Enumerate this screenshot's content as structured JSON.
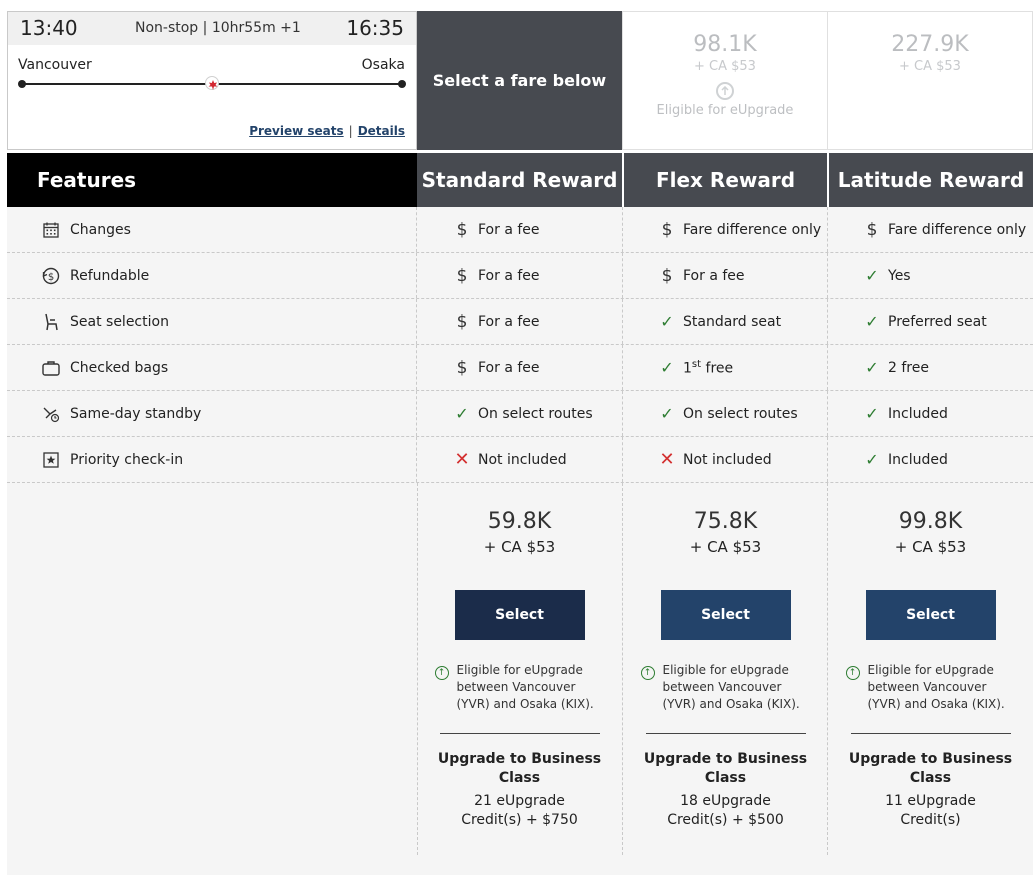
{
  "flight": {
    "depart_time": "13:40",
    "arrive_time": "16:35",
    "route_info": "Non-stop | 10hr55m +1",
    "origin": "Vancouver",
    "destination": "Osaka",
    "preview_seats_link": "Preview seats",
    "details_link": "Details",
    "separator": "|"
  },
  "prompt": "Select a fare below",
  "top_cards": [
    {
      "points": "98.1K",
      "tax": "+ CA $53",
      "eligible": "Eligible for eUpgrade"
    },
    {
      "points": "227.9K",
      "tax": "+ CA $53"
    }
  ],
  "features_header": "Features",
  "fare_columns": [
    "Standard Reward",
    "Flex Reward",
    "Latitude Reward"
  ],
  "rows": [
    {
      "feature": "Changes",
      "icon": "calendar-icon",
      "values": [
        {
          "mark": "dollar",
          "text": "For a fee"
        },
        {
          "mark": "dollar",
          "text": "Fare difference only"
        },
        {
          "mark": "dollar",
          "text": "Fare difference only"
        }
      ]
    },
    {
      "feature": "Refundable",
      "icon": "refund-icon",
      "values": [
        {
          "mark": "dollar",
          "text": "For a fee"
        },
        {
          "mark": "dollar",
          "text": "For a fee"
        },
        {
          "mark": "check",
          "text": "Yes"
        }
      ]
    },
    {
      "feature": "Seat selection",
      "icon": "seat-icon",
      "values": [
        {
          "mark": "dollar",
          "text": "For a fee"
        },
        {
          "mark": "check",
          "text": "Standard seat"
        },
        {
          "mark": "check",
          "text": "Preferred seat"
        }
      ]
    },
    {
      "feature": "Checked bags",
      "icon": "bag-icon",
      "values": [
        {
          "mark": "dollar",
          "text": "For a fee"
        },
        {
          "mark": "check",
          "text": "1",
          "sup": "st",
          "text_after": " free"
        },
        {
          "mark": "check",
          "text": "2 free"
        }
      ]
    },
    {
      "feature": "Same-day standby",
      "icon": "standby-plane-icon",
      "values": [
        {
          "mark": "check",
          "text": "On select routes"
        },
        {
          "mark": "check",
          "text": "On select routes"
        },
        {
          "mark": "check",
          "text": "Included"
        }
      ]
    },
    {
      "feature": "Priority check-in",
      "icon": "priority-star-icon",
      "values": [
        {
          "mark": "cross",
          "text": "Not included"
        },
        {
          "mark": "cross",
          "text": "Not included"
        },
        {
          "mark": "check",
          "text": "Included"
        }
      ]
    }
  ],
  "fares": [
    {
      "points": "59.8K",
      "tax": "+ CA $53",
      "button": "Select",
      "eligible": "Eligible for eUpgrade between Vancouver (YVR) and Osaka (KIX).",
      "upgrade_title": "Upgrade to Business Class",
      "upgrade_cost": "21 eUpgrade Credit(s) + $750"
    },
    {
      "points": "75.8K",
      "tax": "+ CA $53",
      "button": "Select",
      "eligible": "Eligible for eUpgrade between Vancouver (YVR) and Osaka (KIX).",
      "upgrade_title": "Upgrade to Business Class",
      "upgrade_cost": "18 eUpgrade Credit(s) + $500"
    },
    {
      "points": "99.8K",
      "tax": "+ CA $53",
      "button": "Select",
      "eligible": "Eligible for eUpgrade between Vancouver (YVR) and Osaka (KIX).",
      "upgrade_title": "Upgrade to Business Class",
      "upgrade_cost": "11 eUpgrade Credit(s)"
    }
  ],
  "colors": {
    "dark_header": "#474a50",
    "features_header": "#000000",
    "button": "#23436a",
    "check": "#2e7d32",
    "cross": "#d32f2f"
  }
}
